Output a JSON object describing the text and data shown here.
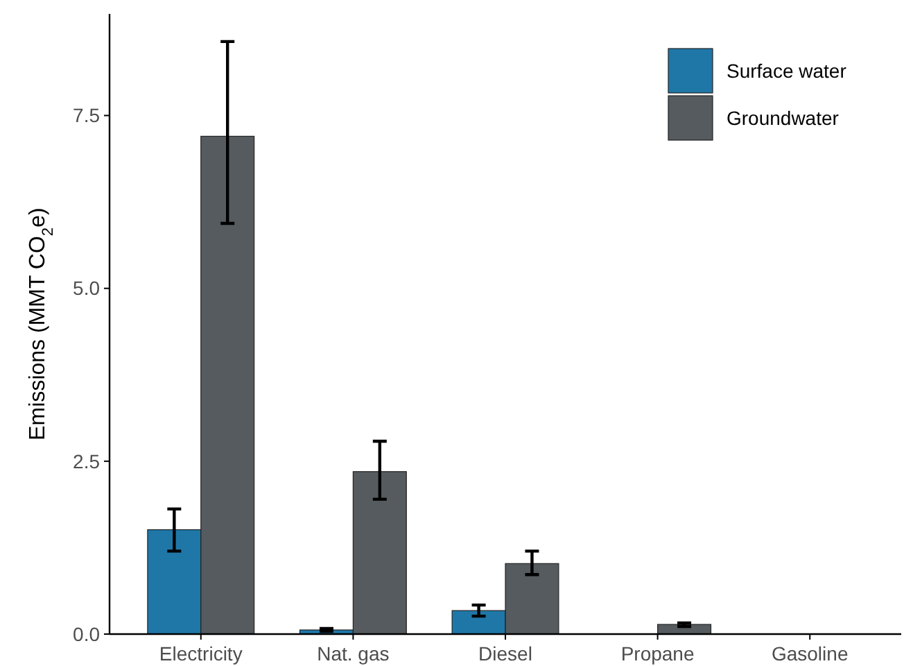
{
  "chart_data": {
    "type": "bar",
    "ylabel": "Emissions (MMT CO$_{2}$e)",
    "categories": [
      "Electricity",
      "Nat. gas",
      "Diesel",
      "Propane",
      "Gasoline"
    ],
    "series": [
      {
        "name": "Surface water",
        "color": "#1f77a8",
        "values": [
          1.51,
          0.06,
          0.34,
          null,
          null
        ],
        "errors": [
          [
            1.2,
            1.81
          ],
          [
            0.04,
            0.08
          ],
          [
            0.26,
            0.42
          ],
          null,
          null
        ]
      },
      {
        "name": "Groundwater",
        "color": "#555b5e",
        "values": [
          7.2,
          2.35,
          1.02,
          0.14,
          null
        ],
        "errors": [
          [
            5.94,
            8.57
          ],
          [
            1.95,
            2.79
          ],
          [
            0.86,
            1.2
          ],
          [
            0.11,
            0.16
          ],
          null
        ]
      }
    ],
    "ylim": [
      0,
      8.97
    ],
    "yticks": [
      {
        "value": 0,
        "label": "0.0"
      },
      {
        "value": 2.5,
        "label": "2.5"
      },
      {
        "value": 5,
        "label": "5.0"
      },
      {
        "value": 7.5,
        "label": "7.5"
      }
    ],
    "grid": false,
    "legend": "top right"
  }
}
